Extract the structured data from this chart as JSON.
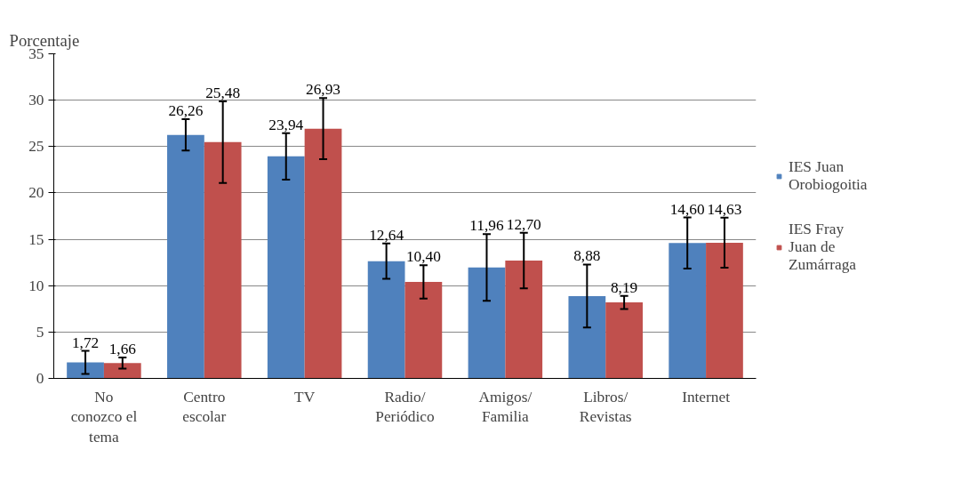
{
  "chart_data": {
    "type": "bar",
    "ylabel": "Porcentaje",
    "categories": [
      "No\nconozco el\ntema",
      "Centro\nescolar",
      "TV",
      "Radio/\nPeriódico",
      "Amigos/\nFamilia",
      "Libros/\nRevistas",
      "Internet"
    ],
    "series": [
      {
        "name": "IES Juan\nOrobiogoitia",
        "color": "#4f81bd",
        "values": [
          1.72,
          26.26,
          23.94,
          12.64,
          11.96,
          8.88,
          14.6
        ],
        "errors": [
          1.25,
          1.7,
          2.5,
          1.9,
          3.6,
          3.4,
          2.75
        ],
        "value_labels": [
          "1,72",
          "26,26",
          "23,94",
          "12,64",
          "11,96",
          "8,88",
          "14,60"
        ]
      },
      {
        "name": "IES Fray\nJuan de\nZumárraga",
        "color": "#c0504d",
        "values": [
          1.66,
          25.48,
          26.93,
          10.4,
          12.7,
          8.19,
          14.63
        ],
        "errors": [
          0.6,
          4.4,
          3.3,
          1.8,
          3.0,
          0.7,
          2.7
        ],
        "value_labels": [
          "1,66",
          "25,48",
          "26,93",
          "10,40",
          "12,70",
          "8,19",
          "14,63"
        ]
      }
    ],
    "ylim": [
      0,
      35
    ],
    "yticks": [
      0,
      5,
      10,
      15,
      20,
      25,
      30,
      35
    ],
    "grid": "y",
    "legend": "right"
  }
}
